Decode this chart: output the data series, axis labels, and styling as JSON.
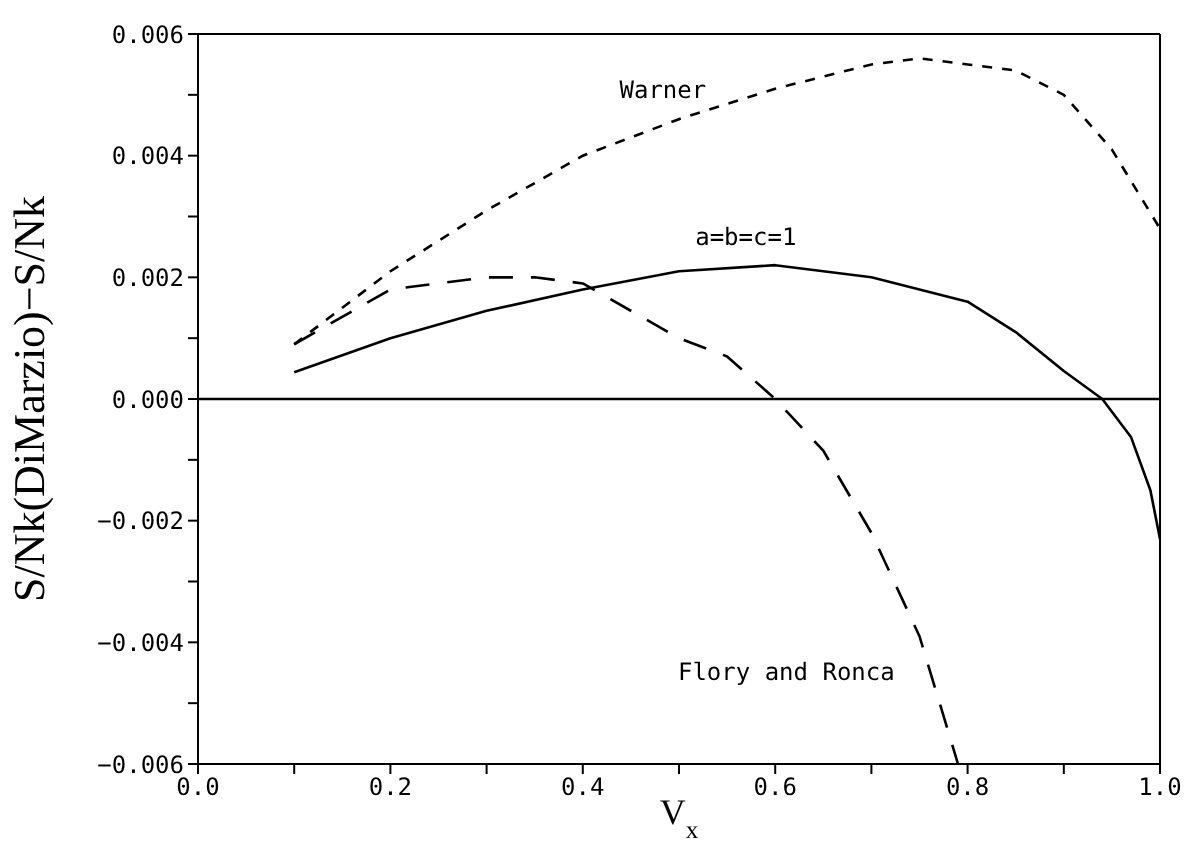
{
  "chart_data": {
    "type": "line",
    "xlabel": "V$_{x}$",
    "ylabel": "S/Nk(DiMarzio)−S/Nk",
    "xlim": [
      0,
      1
    ],
    "ylim": [
      -0.006,
      0.006
    ],
    "xticks": [
      {
        "value": 0,
        "label": "0.0"
      },
      {
        "value": 0.1,
        "label": null
      },
      {
        "value": 0.2,
        "label": "0.2"
      },
      {
        "value": 0.3,
        "label": null
      },
      {
        "value": 0.4,
        "label": "0.4"
      },
      {
        "value": 0.5,
        "label": null
      },
      {
        "value": 0.6,
        "label": "0.6"
      },
      {
        "value": 0.7,
        "label": null
      },
      {
        "value": 0.8,
        "label": "0.8"
      },
      {
        "value": 0.9,
        "label": null
      },
      {
        "value": 1,
        "label": "1.0"
      }
    ],
    "yticks": [
      {
        "value": -0.006,
        "label": "−0.006"
      },
      {
        "value": -0.005,
        "label": null
      },
      {
        "value": -0.004,
        "label": "−0.004"
      },
      {
        "value": -0.003,
        "label": null
      },
      {
        "value": -0.002,
        "label": "−0.002"
      },
      {
        "value": -0.001,
        "label": null
      },
      {
        "value": 0,
        "label": "0.000"
      },
      {
        "value": 0.001,
        "label": null
      },
      {
        "value": 0.002,
        "label": "0.002"
      },
      {
        "value": 0.003,
        "label": null
      },
      {
        "value": 0.004,
        "label": "0.004"
      },
      {
        "value": 0.005,
        "label": null
      },
      {
        "value": 0.006,
        "label": "0.006"
      }
    ],
    "grid": false,
    "legend": false,
    "marker": "none",
    "ref_lines": [
      {
        "axis": "y",
        "value": 0,
        "color": "#000000",
        "line_style": "solid"
      }
    ],
    "series": [
      {
        "name": "Warner",
        "color": "#000000",
        "line_style": "dashed",
        "x": [
          0.1,
          0.2,
          0.3,
          0.4,
          0.5,
          0.6,
          0.7,
          0.75,
          0.8,
          0.85,
          0.9,
          0.95,
          1.0
        ],
        "values": [
          0.0009,
          0.0021,
          0.0031,
          0.004,
          0.0046,
          0.0051,
          0.0055,
          0.0056,
          0.0055,
          0.0054,
          0.005,
          0.0041,
          0.0028
        ]
      },
      {
        "name": "a=b=c=1",
        "color": "#000000",
        "line_style": "solid",
        "x": [
          0.1,
          0.2,
          0.3,
          0.4,
          0.5,
          0.6,
          0.7,
          0.8,
          0.85,
          0.9,
          0.94,
          0.97,
          0.99,
          1.0
        ],
        "values": [
          0.00044,
          0.001,
          0.00145,
          0.0018,
          0.0021,
          0.0022,
          0.002,
          0.0016,
          0.0011,
          0.00046,
          0,
          -0.00063,
          -0.0015,
          -0.0023
        ]
      },
      {
        "name": "Flory and Ronca",
        "color": "#000000",
        "line_style": "dashed",
        "x": [
          0.1,
          0.2,
          0.3,
          0.35,
          0.4,
          0.5,
          0.55,
          0.6,
          0.65,
          0.7,
          0.75,
          0.79
        ],
        "values": [
          0.0009,
          0.0018,
          0.002,
          0.002,
          0.0019,
          0.001,
          0.0007,
          0,
          -0.00085,
          -0.0022,
          -0.0039,
          -0.006
        ]
      }
    ]
  }
}
